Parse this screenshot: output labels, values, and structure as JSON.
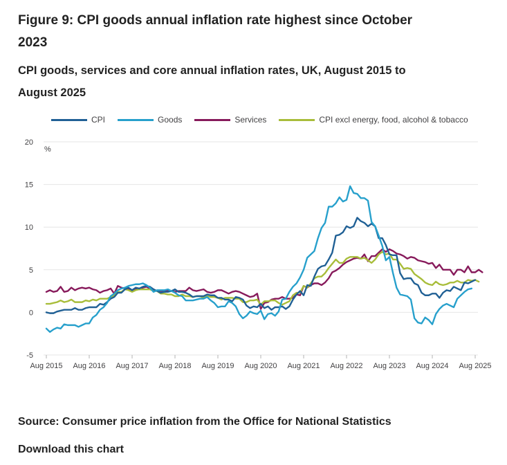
{
  "title": "Figure 9: CPI goods annual inflation rate highest since October 2023",
  "subtitle": "CPI goods, services and core annual inflation rates, UK, August 2015 to August 2025",
  "source": "Source: Consumer price inflation from the Office for National Statistics",
  "download_label": "Download this chart",
  "chart_data": {
    "type": "line",
    "title": "CPI goods, services and core annual inflation rates, UK, August 2015 to August 2025",
    "xlabel": "",
    "ylabel": "%",
    "ylim": [
      -5,
      20
    ],
    "yticks": [
      -5,
      0,
      5,
      10,
      15,
      20
    ],
    "grid": true,
    "legend_position": "top",
    "x_start": "Aug 2015",
    "x_end": "Aug 2025",
    "x_frequency": "monthly",
    "x_ticks": [
      {
        "label": "Aug 2015",
        "index": 0
      },
      {
        "label": "Aug 2016",
        "index": 12
      },
      {
        "label": "Aug 2017",
        "index": 24
      },
      {
        "label": "Aug 2018",
        "index": 36
      },
      {
        "label": "Aug 2019",
        "index": 48
      },
      {
        "label": "Aug 2020",
        "index": 60
      },
      {
        "label": "Aug 2021",
        "index": 72
      },
      {
        "label": "Aug 2022",
        "index": 84
      },
      {
        "label": "Aug 2023",
        "index": 96
      },
      {
        "label": "Aug 2024",
        "index": 108
      },
      {
        "label": "Aug 2025",
        "index": 120
      }
    ],
    "series": [
      {
        "name": "CPI",
        "color": "#206095",
        "values": [
          0.0,
          -0.1,
          -0.1,
          0.1,
          0.2,
          0.3,
          0.3,
          0.3,
          0.5,
          0.3,
          0.3,
          0.5,
          0.6,
          0.6,
          0.6,
          1.0,
          0.9,
          1.2,
          1.6,
          1.8,
          2.3,
          2.3,
          2.7,
          2.9,
          2.6,
          2.9,
          2.8,
          3.0,
          3.1,
          3.0,
          2.7,
          2.5,
          2.3,
          2.4,
          2.4,
          2.5,
          2.7,
          2.4,
          2.4,
          2.3,
          2.1,
          1.8,
          1.9,
          1.9,
          1.9,
          2.1,
          2.0,
          2.0,
          1.7,
          1.7,
          1.5,
          1.5,
          1.3,
          1.8,
          1.7,
          1.5,
          0.8,
          0.5,
          0.7,
          0.6,
          1.0,
          0.5,
          0.7,
          0.3,
          0.6,
          0.6,
          0.7,
          0.4,
          0.7,
          1.5,
          2.1,
          2.5,
          2.0,
          3.2,
          3.1,
          4.2,
          5.1,
          5.4,
          5.5,
          6.2,
          7.0,
          9.0,
          9.1,
          9.4,
          10.1,
          9.9,
          10.1,
          11.1,
          10.7,
          10.5,
          10.1,
          10.4,
          10.1,
          8.7,
          8.7,
          7.9,
          6.8,
          6.7,
          6.7,
          4.6,
          3.9,
          4.0,
          4.0,
          3.4,
          3.2,
          2.3,
          2.0,
          2.0,
          2.2,
          2.2,
          1.7,
          2.3,
          2.6,
          2.5,
          3.0,
          2.8,
          2.6,
          3.5,
          3.4,
          3.6,
          3.8
        ]
      },
      {
        "name": "Goods",
        "color": "#27a0cc",
        "values": [
          -1.9,
          -2.3,
          -2.0,
          -1.8,
          -1.9,
          -1.4,
          -1.5,
          -1.5,
          -1.5,
          -1.7,
          -1.5,
          -1.3,
          -1.3,
          -0.6,
          -0.3,
          0.3,
          0.6,
          1.1,
          1.9,
          2.2,
          2.6,
          2.8,
          2.9,
          3.1,
          3.2,
          3.3,
          3.3,
          3.4,
          3.2,
          2.9,
          2.4,
          2.6,
          2.6,
          2.6,
          2.7,
          2.5,
          2.3,
          2.0,
          1.9,
          1.4,
          1.4,
          1.4,
          1.5,
          1.6,
          1.6,
          1.8,
          1.4,
          1.1,
          0.6,
          0.7,
          0.7,
          1.3,
          1.1,
          0.7,
          -0.2,
          -0.7,
          -0.4,
          0.1,
          -0.1,
          -0.2,
          0.2,
          -0.8,
          -0.2,
          -0.1,
          -0.4,
          0.1,
          1.5,
          1.6,
          2.4,
          3.0,
          3.4,
          4.1,
          5.0,
          6.4,
          6.8,
          7.2,
          8.7,
          9.9,
          10.5,
          12.4,
          12.4,
          12.8,
          13.5,
          13.0,
          13.2,
          14.8,
          14.0,
          13.9,
          13.4,
          13.4,
          13.1,
          10.6,
          10.1,
          9.0,
          7.8,
          6.1,
          6.5,
          4.6,
          2.9,
          2.1,
          2.0,
          1.9,
          1.5,
          -0.7,
          -1.2,
          -1.3,
          -0.6,
          -0.9,
          -1.4,
          -0.2,
          0.4,
          0.8,
          1.0,
          0.8,
          0.6,
          1.6,
          2.0,
          2.4,
          2.7,
          2.8
        ]
      },
      {
        "name": "Services",
        "color": "#871a5b",
        "values": [
          2.4,
          2.6,
          2.4,
          2.5,
          3.0,
          2.4,
          2.5,
          2.9,
          2.6,
          2.8,
          2.9,
          2.8,
          2.9,
          2.7,
          2.6,
          2.3,
          2.5,
          2.6,
          2.8,
          2.2,
          3.1,
          2.9,
          2.8,
          2.7,
          2.6,
          2.8,
          2.7,
          2.9,
          3.0,
          2.8,
          2.6,
          2.5,
          2.5,
          2.5,
          2.5,
          2.5,
          2.4,
          2.5,
          2.5,
          2.5,
          2.9,
          2.6,
          2.5,
          2.6,
          2.7,
          2.4,
          2.3,
          2.4,
          2.6,
          2.6,
          2.4,
          2.2,
          2.4,
          2.5,
          2.4,
          2.2,
          2.0,
          1.8,
          1.9,
          2.2,
          0.4,
          1.1,
          1.2,
          1.5,
          1.6,
          1.6,
          1.8,
          1.6,
          1.6,
          1.7,
          2.1,
          2.0,
          3.1,
          2.9,
          3.2,
          3.4,
          3.4,
          3.2,
          3.5,
          4.0,
          4.7,
          4.9,
          5.2,
          5.6,
          5.9,
          6.1,
          6.3,
          6.4,
          6.3,
          6.8,
          6.0,
          6.6,
          6.6,
          7.0,
          7.4,
          7.1,
          7.4,
          7.2,
          6.9,
          6.8,
          6.6,
          6.3,
          6.5,
          6.4,
          6.1,
          6.0,
          5.9,
          5.7,
          5.8,
          5.2,
          5.6,
          5.0,
          5.0,
          5.0,
          4.4,
          5.0,
          5.0,
          4.7,
          5.4,
          4.7,
          4.7,
          5.0,
          4.7
        ]
      },
      {
        "name": "CPI excl energy, food, alcohol & tobacco",
        "color": "#a8bd3a",
        "values": [
          1.0,
          1.0,
          1.1,
          1.2,
          1.4,
          1.2,
          1.3,
          1.5,
          1.2,
          1.2,
          1.2,
          1.4,
          1.3,
          1.5,
          1.4,
          1.6,
          1.6,
          1.6,
          1.8,
          2.0,
          2.4,
          2.4,
          2.7,
          2.6,
          2.4,
          2.6,
          2.7,
          2.7,
          2.7,
          2.7,
          2.5,
          2.5,
          2.2,
          2.2,
          2.1,
          2.1,
          1.9,
          1.9,
          2.1,
          1.9,
          1.9,
          1.8,
          1.9,
          1.9,
          1.7,
          1.9,
          1.8,
          1.8,
          1.7,
          1.5,
          1.7,
          1.7,
          1.7,
          1.6,
          1.6,
          1.2,
          1.2,
          1.4,
          1.4,
          1.5,
          0.9,
          1.3,
          1.3,
          1.4,
          1.4,
          1.1,
          0.9,
          1.1,
          1.3,
          2.0,
          2.3,
          2.3,
          3.1,
          2.9,
          3.4,
          4.0,
          4.2,
          4.2,
          4.6,
          5.2,
          5.7,
          6.2,
          5.8,
          5.8,
          6.3,
          6.5,
          6.5,
          6.5,
          6.3,
          6.4,
          6.1,
          5.8,
          6.2,
          6.8,
          7.1,
          6.8,
          6.9,
          6.2,
          6.2,
          5.7,
          5.1,
          5.2,
          5.1,
          4.5,
          4.2,
          3.9,
          3.5,
          3.3,
          3.2,
          3.6,
          3.3,
          3.2,
          3.3,
          3.5,
          3.5,
          3.7,
          3.5,
          3.5,
          3.8,
          3.7,
          3.8,
          3.6
        ]
      }
    ]
  }
}
